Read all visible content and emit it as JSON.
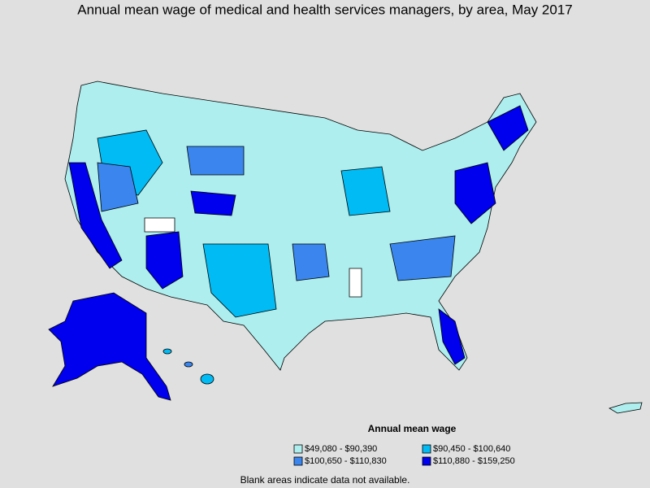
{
  "title": "Annual mean wage of medical and health services managers, by area, May 2017",
  "legend": {
    "title": "Annual mean wage",
    "items": [
      {
        "label": "$49,080 - $90,390",
        "color": "#aeeeee"
      },
      {
        "label": "$90,450 - $100,640",
        "color": "#00bbf4"
      },
      {
        "label": "$100,650 - $110,830",
        "color": "#3a86ee"
      },
      {
        "label": "$110,880 - $159,250",
        "color": "#0000ee"
      }
    ]
  },
  "note": "Blank areas indicate data not available."
}
